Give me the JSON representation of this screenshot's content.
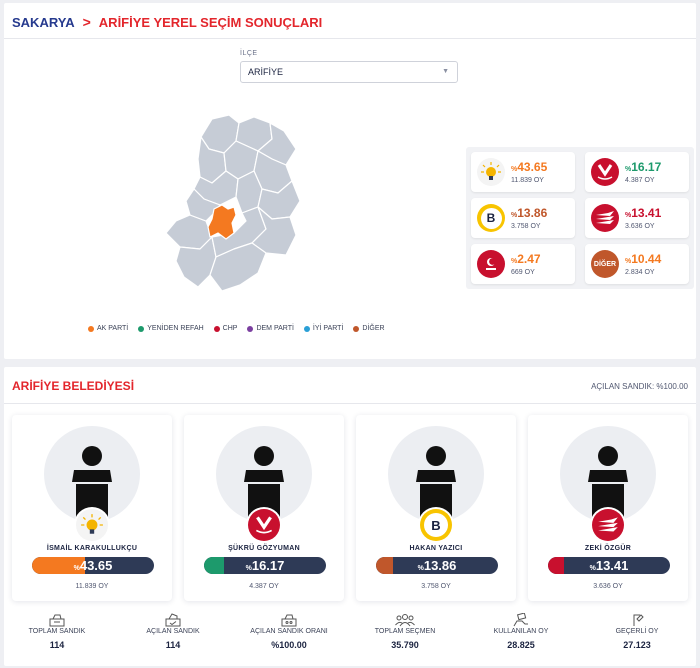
{
  "breadcrumb": {
    "province": "SAKARYA",
    "separator": ">",
    "page_title": "ARİFİYE YEREL SEÇİM SONUÇLARI"
  },
  "district_select": {
    "label": "İLÇE",
    "value": "ARİFİYE"
  },
  "legend": [
    {
      "label": "AK PARTİ",
      "color": "#f47920"
    },
    {
      "label": "YENİDEN REFAH",
      "color": "#1d9a6c"
    },
    {
      "label": "CHP",
      "color": "#c8102e"
    },
    {
      "label": "DEM PARTİ",
      "color": "#7b3fa0"
    },
    {
      "label": "İYİ PARTİ",
      "color": "#2a9fd6"
    },
    {
      "label": "DİĞER",
      "color": "#c0572b"
    }
  ],
  "party_results": [
    {
      "pct_prefix": "%",
      "pct": "43.65",
      "votes": "11.839 OY",
      "color": "#f47920",
      "logo": "akp-bulb-icon"
    },
    {
      "pct_prefix": "%",
      "pct": "16.17",
      "votes": "4.387 OY",
      "color": "#1d9a6c",
      "logo": "yeniden-refah-logo"
    },
    {
      "pct_prefix": "%",
      "pct": "13.86",
      "votes": "3.758 OY",
      "color": "#c0572b",
      "logo": "b-letter-logo"
    },
    {
      "pct_prefix": "%",
      "pct": "13.41",
      "votes": "3.636 OY",
      "color": "#c8102e",
      "logo": "chp-arrows-logo"
    },
    {
      "pct_prefix": "%",
      "pct": "2.47",
      "votes": "669 OY",
      "color": "#f47920",
      "logo": "saadet-logo"
    },
    {
      "pct_prefix": "%",
      "pct": "10.44",
      "votes": "2.834 OY",
      "color": "#f47920",
      "logo": "diger-logo",
      "logo_text": "DİĞER"
    }
  ],
  "belediye": {
    "title": "ARİFİYE BELEDİYESİ",
    "opened_ballot": "AÇILAN SANDIK: %100.00"
  },
  "candidates": [
    {
      "name": "İSMAİL KARAKULLUKÇU",
      "pct_prefix": "%",
      "pct": "43.65",
      "pct_value": 43.65,
      "votes": "11.839 OY",
      "bar_color": "#f47920",
      "logo": "akp-bulb-icon"
    },
    {
      "name": "ŞÜKRÜ GÖZYUMAN",
      "pct_prefix": "%",
      "pct": "16.17",
      "pct_value": 16.17,
      "votes": "4.387 OY",
      "bar_color": "#1d9a6c",
      "logo": "yeniden-refah-logo"
    },
    {
      "name": "HAKAN YAZICI",
      "pct_prefix": "%",
      "pct": "13.86",
      "pct_value": 13.86,
      "votes": "3.758 OY",
      "bar_color": "#c0572b",
      "logo": "b-letter-logo"
    },
    {
      "name": "ZEKİ ÖZGÜR",
      "pct_prefix": "%",
      "pct": "13.41",
      "pct_value": 13.41,
      "votes": "3.636 OY",
      "bar_color": "#c8102e",
      "logo": "chp-arrows-logo"
    }
  ],
  "stats": [
    {
      "label": "TOPLAM SANDIK",
      "value": "114",
      "icon": "ballot-box-icon"
    },
    {
      "label": "AÇILAN SANDIK",
      "value": "114",
      "icon": "open-ballot-box-icon"
    },
    {
      "label": "AÇILAN SANDIK ORANI",
      "value": "%100.00",
      "icon": "ballot-ratio-icon"
    },
    {
      "label": "TOPLAM SEÇMEN",
      "value": "35.790",
      "icon": "voters-group-icon"
    },
    {
      "label": "KULLANILAN OY",
      "value": "28.825",
      "icon": "hand-vote-icon"
    },
    {
      "label": "GEÇERLİ OY",
      "value": "27.123",
      "icon": "valid-vote-icon"
    }
  ]
}
